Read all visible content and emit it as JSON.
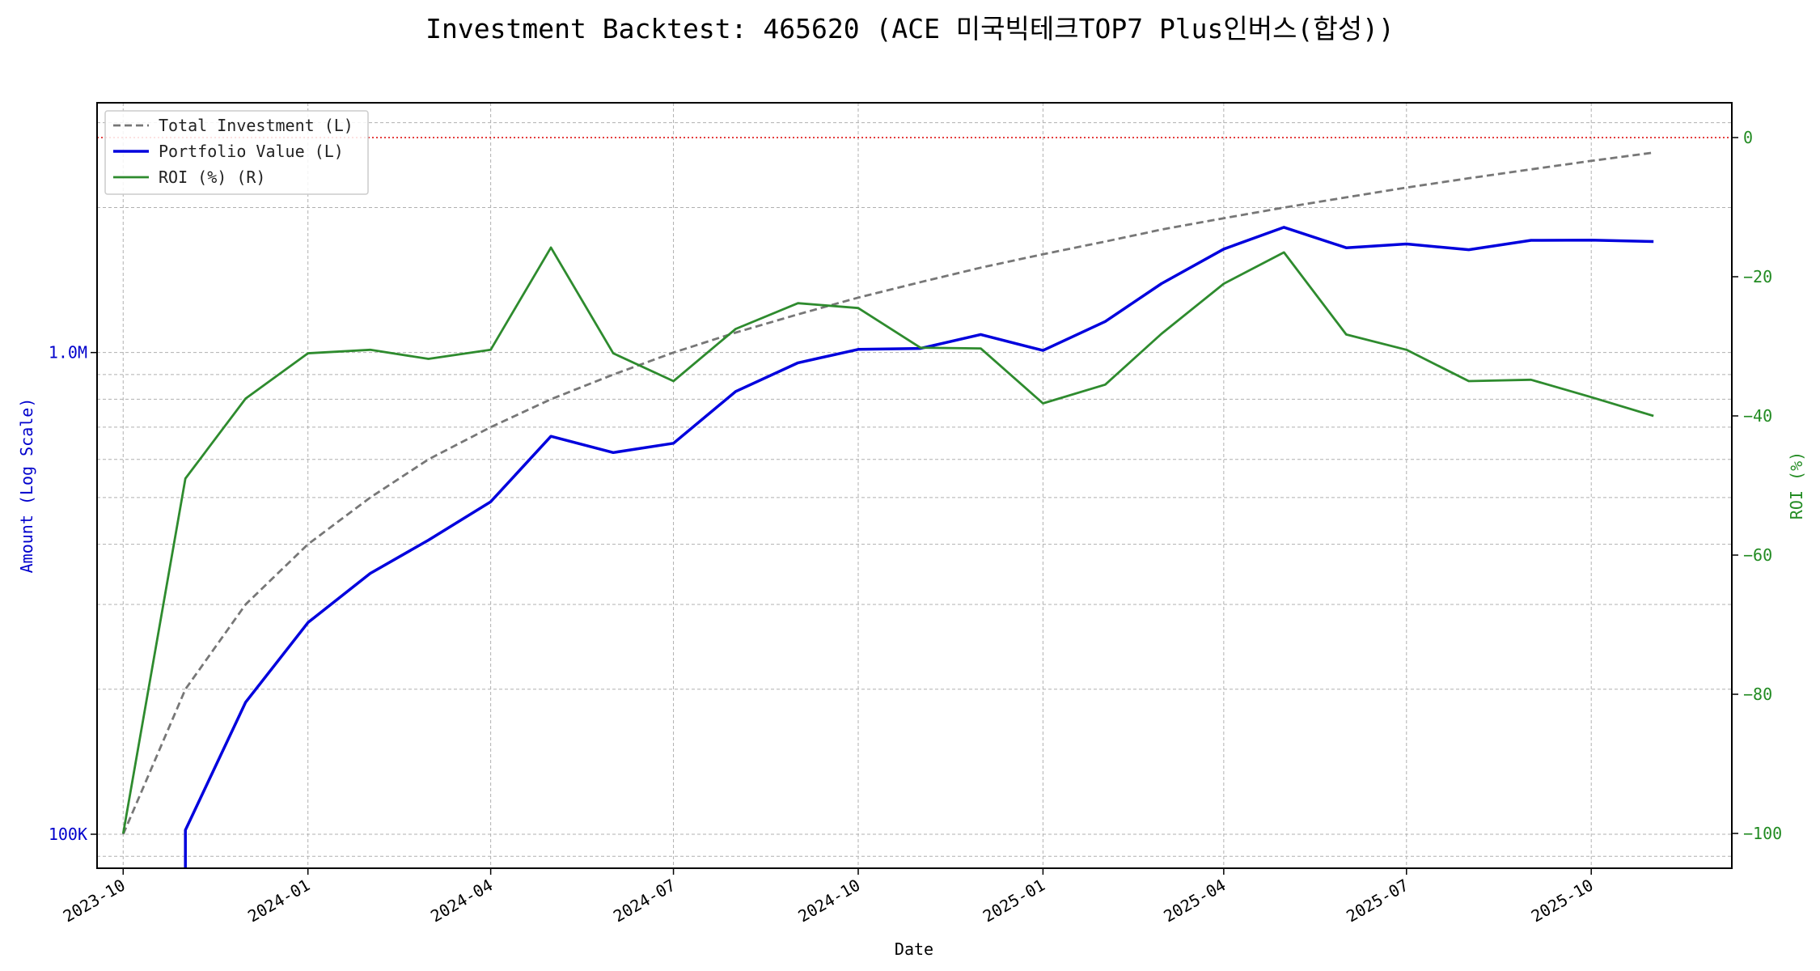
{
  "chart_data": {
    "type": "line",
    "title": "Investment Backtest: 465620 (ACE 미국빅테크TOP7 Plus인버스(합성))",
    "xlabel": "Date",
    "ylabel_left": "Amount (Log Scale)",
    "ylabel_right": "ROI (%)",
    "left_axis": {
      "scale": "log",
      "ylim": [
        85000,
        3300000
      ],
      "ticks": [
        100000,
        1000000
      ],
      "tick_labels": [
        "100K",
        "1.0M"
      ],
      "color": "#0000cc"
    },
    "right_axis": {
      "scale": "linear",
      "ylim": [
        -105,
        5
      ],
      "ticks": [
        0,
        -20,
        -40,
        -60,
        -80,
        -100
      ],
      "tick_labels": [
        "0",
        "−20",
        "−40",
        "−60",
        "−80",
        "−100"
      ],
      "color": "#228b22"
    },
    "x_ticks": [
      "2023-10",
      "2024-01",
      "2024-04",
      "2024-07",
      "2024-10",
      "2025-01",
      "2025-04",
      "2025-07",
      "2025-10"
    ],
    "x": [
      "2023-10-01",
      "2023-11-01",
      "2023-12-01",
      "2024-01-01",
      "2024-02-01",
      "2024-03-01",
      "2024-04-01",
      "2024-05-01",
      "2024-06-01",
      "2024-07-01",
      "2024-08-01",
      "2024-09-01",
      "2024-10-01",
      "2024-11-01",
      "2024-12-01",
      "2025-01-01",
      "2025-02-01",
      "2025-03-01",
      "2025-04-01",
      "2025-05-01",
      "2025-06-01",
      "2025-07-01",
      "2025-08-01",
      "2025-09-01",
      "2025-10-01",
      "2025-11-01"
    ],
    "series": [
      {
        "name": "Total Investment (L)",
        "axis": "left",
        "color": "#777777",
        "style": "dashed",
        "values": [
          100000,
          200000,
          300000,
          400000,
          500000,
          600000,
          700000,
          800000,
          900000,
          1000000,
          1100000,
          1200000,
          1300000,
          1400000,
          1500000,
          1600000,
          1700000,
          1800000,
          1900000,
          2000000,
          2100000,
          2200000,
          2300000,
          2400000,
          2500000,
          2600000
        ]
      },
      {
        "name": "Portfolio Value (L)",
        "axis": "left",
        "color": "#0000dd",
        "style": "solid",
        "values": [
          null,
          102000,
          188000,
          275000,
          348000,
          408000,
          490000,
          670000,
          620000,
          648000,
          830000,
          952000,
          1015000,
          1020000,
          1090000,
          1010000,
          1160000,
          1390000,
          1640000,
          1820000,
          1650000,
          1680000,
          1635000,
          1710000,
          1712000,
          1700000
        ]
      },
      {
        "name": "ROI (%) (R)",
        "axis": "right",
        "color": "#2e8b2e",
        "style": "solid",
        "values": [
          -100,
          -49,
          -37.5,
          -31,
          -30.5,
          -31.8,
          -30.5,
          -15.8,
          -31,
          -35,
          -27.5,
          -23.8,
          -24.5,
          -30.2,
          -30.3,
          -38.2,
          -35.5,
          -28.2,
          -21,
          -16.5,
          -28.3,
          -30.5,
          -35,
          -34.8,
          -37.3,
          -40
        ]
      }
    ],
    "reference_line": {
      "axis": "right",
      "value": 0,
      "color": "#dd0000",
      "style": "dotted"
    },
    "legend": {
      "placement": "top-left"
    },
    "grid": true
  }
}
